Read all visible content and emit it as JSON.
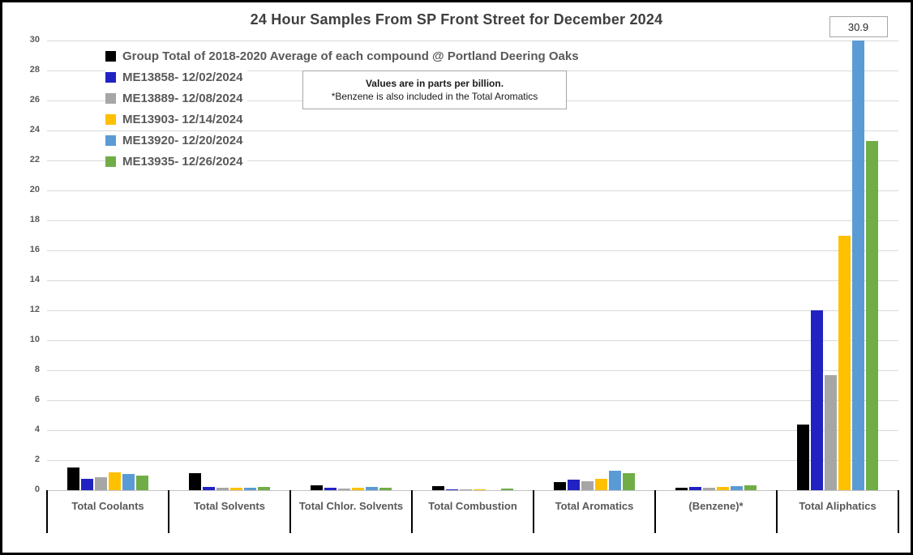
{
  "chart": {
    "title": "24 Hour Samples From SP Front Street for December 2024",
    "annotation": {
      "line1": "Values are in parts per billion.",
      "line2": "*Benzene is also included in the Total Aromatics"
    },
    "max_label": "30.9"
  },
  "chart_data": {
    "type": "bar",
    "title": "24 Hour Samples From SP Front Street for December 2024",
    "categories": [
      "Total Coolants",
      "Total Solvents",
      "Total Chlor. Solvents",
      "Total Combustion",
      "Total Aromatics",
      "(Benzene)*",
      "Total Aliphatics"
    ],
    "series": [
      {
        "name": "Group Total of 2018-2020 Average of each compound @ Portland Deering Oaks",
        "color": "#000000",
        "values": [
          1.5,
          1.15,
          0.35,
          0.25,
          0.55,
          0.15,
          4.4
        ]
      },
      {
        "name": "ME13858- 12/02/2024",
        "color": "#2222C2",
        "values": [
          0.75,
          0.2,
          0.15,
          0.07,
          0.7,
          0.2,
          12.0
        ]
      },
      {
        "name": "ME13889- 12/08/2024",
        "color": "#A6A6A6",
        "values": [
          0.85,
          0.15,
          0.1,
          0.07,
          0.6,
          0.18,
          7.65
        ]
      },
      {
        "name": "ME13903- 12/14/2024",
        "color": "#FFC000",
        "values": [
          1.2,
          0.15,
          0.18,
          0.08,
          0.75,
          0.2,
          16.95
        ]
      },
      {
        "name": "ME13920- 12/20/2024",
        "color": "#5B9BD5",
        "values": [
          1.1,
          0.15,
          0.2,
          0.0,
          1.3,
          0.25,
          30.9
        ]
      },
      {
        "name": "ME13935- 12/26/2024",
        "color": "#70AD47",
        "values": [
          1.0,
          0.2,
          0.15,
          0.12,
          1.15,
          0.3,
          23.3
        ]
      }
    ],
    "ylabel": "",
    "xlabel": "",
    "ylim": [
      0,
      30
    ],
    "ytick_step": 2,
    "grid": true,
    "legend_position": "top-left-inside",
    "units_note": "Values are in parts per billion. *Benzene is also included in the Total Aromatics",
    "data_label": {
      "series": "ME13920- 12/20/2024",
      "category": "Total Aliphatics",
      "text": "30.9",
      "clipped_at_axis_max": true
    }
  }
}
